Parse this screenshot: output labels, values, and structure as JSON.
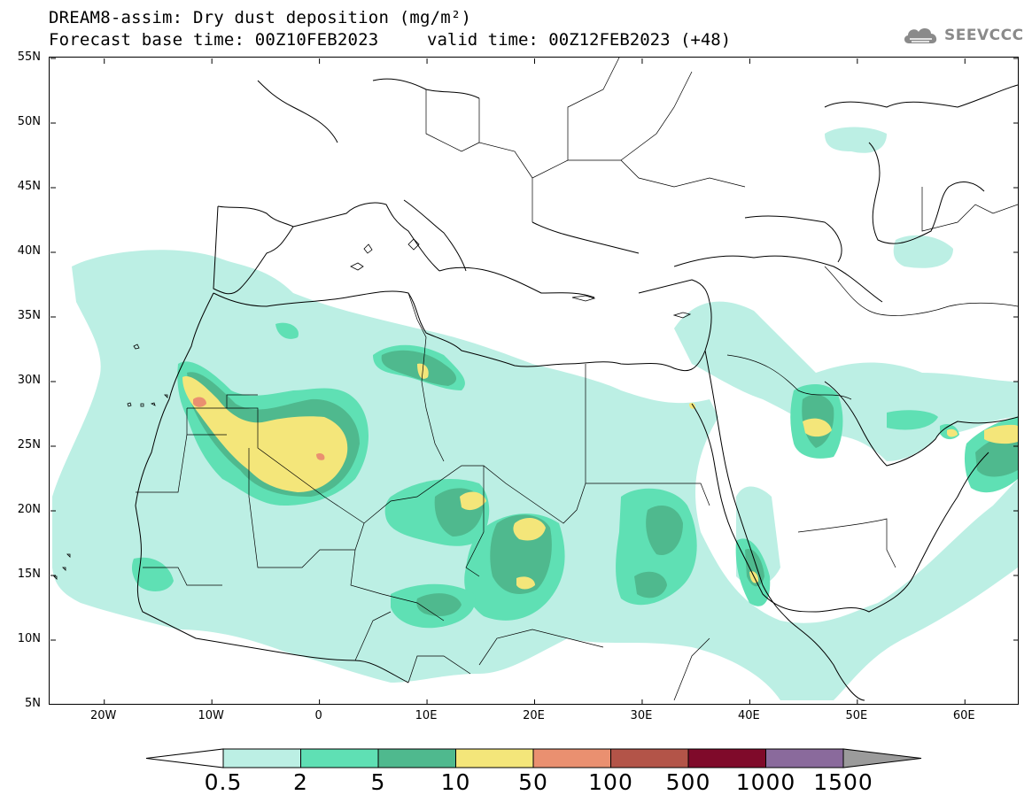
{
  "title": {
    "line1": "DREAM8-assim: Dry dust deposition (mg/m²)",
    "base_time": "Forecast base time: 00Z10FEB2023",
    "valid_time": "valid time: 00Z12FEB2023 (+48)"
  },
  "logo": {
    "text": "SEEVCCC",
    "icon": "cloud-icon"
  },
  "map": {
    "lon_range": [
      -25,
      65
    ],
    "lat_range": [
      5,
      55
    ],
    "lat_labels": [
      "55N",
      "50N",
      "45N",
      "40N",
      "35N",
      "30N",
      "25N",
      "20N",
      "15N",
      "10N",
      "5N"
    ],
    "lat_values": [
      55,
      50,
      45,
      40,
      35,
      30,
      25,
      20,
      15,
      10,
      5
    ],
    "lon_labels": [
      "20W",
      "10W",
      "0",
      "10E",
      "20E",
      "30E",
      "40E",
      "50E",
      "60E"
    ],
    "lon_values": [
      -20,
      -10,
      0,
      10,
      20,
      30,
      40,
      50,
      60
    ]
  },
  "colorbar": {
    "labels": [
      "0.5",
      "2",
      "5",
      "10",
      "50",
      "100",
      "500",
      "1000",
      "1500"
    ],
    "colors": [
      "#bcefe4",
      "#5fe0b4",
      "#4fb98e",
      "#f4e67a",
      "#ea9070",
      "#b35448",
      "#7f0a2a",
      "#8a6a9c",
      "#9b9b9b"
    ],
    "under_color": "#ffffff",
    "over_color": "#9b9b9b"
  }
}
